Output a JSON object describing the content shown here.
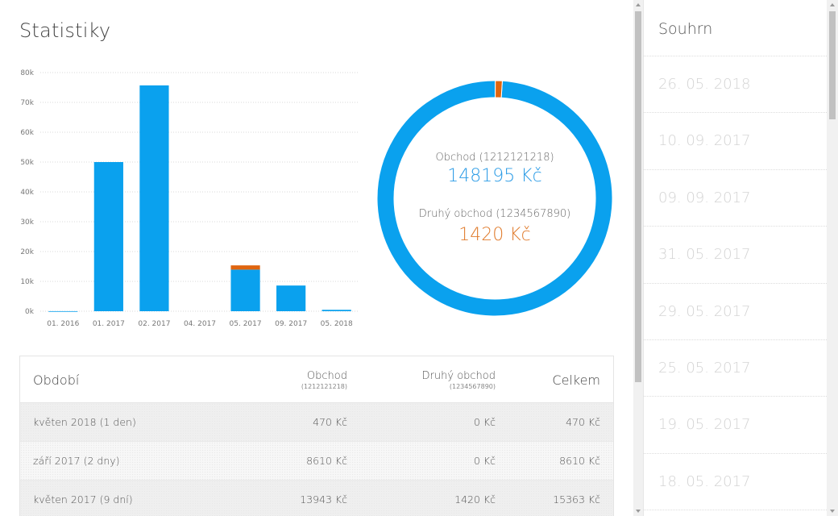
{
  "page": {
    "title": "Statistiky"
  },
  "colors": {
    "primary": "#0aa1ee",
    "secondary": "#e0650f",
    "primary_text": "#2a9be6",
    "secondary_text": "#e07b2c"
  },
  "chart_data": [
    {
      "type": "bar",
      "stacked": true,
      "categories": [
        "01. 2016",
        "01. 2017",
        "02. 2017",
        "04. 2017",
        "05. 2017",
        "09. 2017",
        "05. 2018"
      ],
      "series": [
        {
          "values": [
            20,
            50000,
            75700,
            0,
            13943,
            8610,
            470
          ]
        },
        {
          "values": [
            0,
            0,
            0,
            0,
            1420,
            0,
            0
          ]
        }
      ],
      "ylim": [
        0,
        80000
      ],
      "yticks": [
        0,
        10000,
        20000,
        30000,
        40000,
        50000,
        60000,
        70000,
        80000
      ],
      "ytick_labels": [
        "0k",
        "10k",
        "20k",
        "30k",
        "40k",
        "50k",
        "60k",
        "70k",
        "80k"
      ],
      "grid": true
    },
    {
      "type": "pie",
      "donut": true,
      "labels": [
        "Obchod (1212121218)",
        "Druhý obchod (1234567890)"
      ],
      "values": [
        148195,
        1420
      ]
    }
  ],
  "donut": {
    "label_1": "Obchod (1212121218)",
    "value_1": "148195 Kč",
    "label_2": "Druhý obchod (1234567890)",
    "value_2": "1420 Kč"
  },
  "table": {
    "headers": {
      "period": "Období",
      "shop1": "Obchod",
      "shop1_sub": "(1212121218)",
      "shop2": "Druhý obchod",
      "shop2_sub": "(1234567890)",
      "total": "Celkem"
    },
    "rows": [
      {
        "period": "květen 2018 (1 den)",
        "shop1": "470 Kč",
        "shop2": "0 Kč",
        "total": "470 Kč"
      },
      {
        "period": "září 2017 (2 dny)",
        "shop1": "8610 Kč",
        "shop2": "0 Kč",
        "total": "8610 Kč"
      },
      {
        "period": "květen 2017 (9 dní)",
        "shop1": "13943 Kč",
        "shop2": "1420 Kč",
        "total": "15363 Kč"
      }
    ]
  },
  "sidebar": {
    "title": "Souhrn",
    "items": [
      {
        "label": "26. 05. 2018"
      },
      {
        "label": "10. 09. 2017"
      },
      {
        "label": "09. 09. 2017"
      },
      {
        "label": "31. 05. 2017"
      },
      {
        "label": "29. 05. 2017"
      },
      {
        "label": "25. 05. 2017"
      },
      {
        "label": "19. 05. 2017"
      },
      {
        "label": "18. 05. 2017"
      }
    ]
  }
}
